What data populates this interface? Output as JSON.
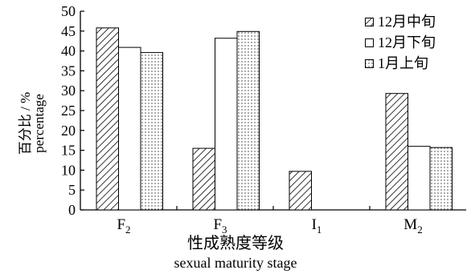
{
  "chart_data": {
    "type": "bar",
    "categories": [
      "F2",
      "F3",
      "I1",
      "M2"
    ],
    "category_labels": [
      {
        "main": "F",
        "sub": "2"
      },
      {
        "main": "F",
        "sub": "3"
      },
      {
        "main": "I",
        "sub": "1"
      },
      {
        "main": "M",
        "sub": "2"
      }
    ],
    "series": [
      {
        "name": "12月中旬",
        "pattern": "hatch",
        "values": [
          45.8,
          15.5,
          9.7,
          29.3
        ]
      },
      {
        "name": "12月下旬",
        "pattern": "blank",
        "values": [
          40.9,
          43.2,
          0,
          16.0
        ]
      },
      {
        "name": "1月上旬",
        "pattern": "dots",
        "values": [
          39.6,
          44.9,
          0,
          15.7
        ]
      }
    ],
    "ylim": [
      0,
      50
    ],
    "yticks": [
      0,
      5,
      10,
      15,
      20,
      25,
      30,
      35,
      40,
      45,
      50
    ],
    "ylabel_cn": "百分比 / %",
    "ylabel_en": "percentage",
    "xlabel_cn": "性成熟度等级",
    "xlabel_en": "sexual maturity stage",
    "legend_position": "top-right",
    "grid": false
  }
}
